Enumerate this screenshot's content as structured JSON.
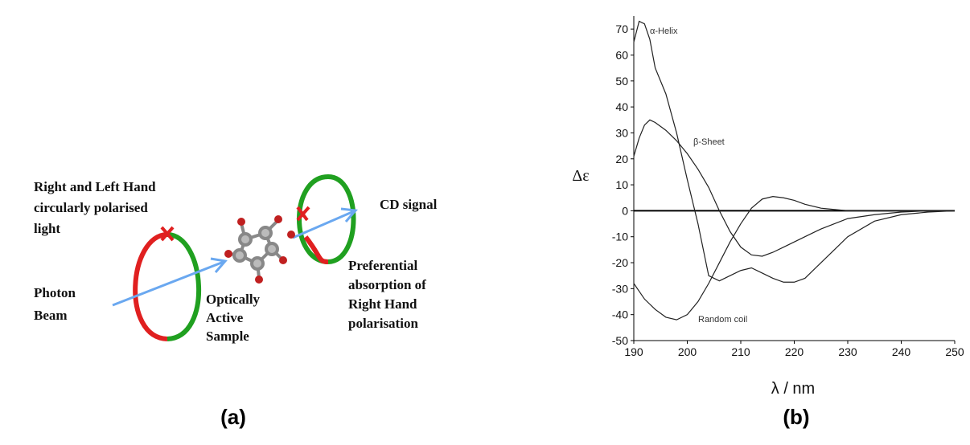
{
  "diagram": {
    "source_label": [
      "Right and Left Hand",
      "circularly polarised",
      "light"
    ],
    "beam_label": [
      "Photon",
      "Beam"
    ],
    "sample_label": [
      "Optically",
      "Active",
      "Sample"
    ],
    "signal_label": "CD signal",
    "absorption_label": [
      "Preferential",
      "absorption of",
      "Right Hand",
      "polarisation"
    ],
    "panel_label": "(a)"
  },
  "chart_data": {
    "type": "line",
    "panel_label": "(b)",
    "xlabel": "λ / nm",
    "ylabel": "Δε",
    "x": [
      190,
      191,
      192,
      193,
      194,
      196,
      198,
      200,
      202,
      204,
      206,
      208,
      210,
      212,
      214,
      216,
      218,
      220,
      222,
      225,
      230,
      235,
      240,
      245,
      250
    ],
    "series": [
      {
        "name": "α-Helix",
        "color": "#222",
        "values": [
          65,
          73,
          72,
          66,
          55,
          45,
          30,
          12,
          -5,
          -25,
          -27,
          -25,
          -23,
          -22,
          -24,
          -26,
          -27.5,
          -27.5,
          -26,
          -20,
          -10,
          -4,
          -1.5,
          -0.5,
          0
        ]
      },
      {
        "name": "β-Sheet",
        "color": "#222",
        "values": [
          21,
          28,
          33,
          35,
          34,
          31,
          27,
          22,
          16,
          9,
          0,
          -8,
          -14,
          -17,
          -17.5,
          -16,
          -14,
          -12,
          -10,
          -7,
          -3,
          -1.5,
          -0.5,
          0,
          0
        ]
      },
      {
        "name": "Random coil",
        "color": "#222",
        "values": [
          -28,
          -31,
          -34,
          -36,
          -38,
          -41,
          -42,
          -40,
          -35,
          -28,
          -20,
          -12,
          -5,
          1,
          4.5,
          5.5,
          5,
          4,
          2.5,
          1,
          0,
          0,
          0,
          0,
          0
        ]
      }
    ],
    "xlim": [
      190,
      250
    ],
    "ylim": [
      -50,
      75
    ],
    "xticks": [
      190,
      200,
      210,
      220,
      230,
      240,
      250
    ],
    "yticks": [
      -50,
      -40,
      -30,
      -20,
      -10,
      0,
      10,
      20,
      30,
      40,
      50,
      60,
      70
    ]
  }
}
